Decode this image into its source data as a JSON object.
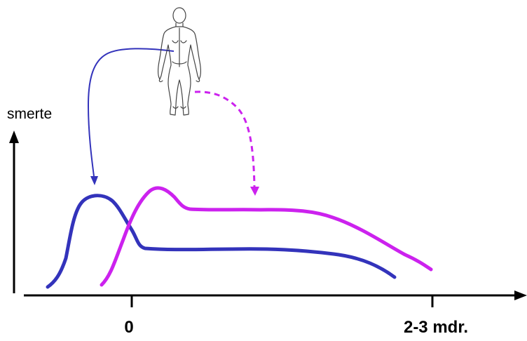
{
  "diagram": {
    "y_axis_label": "smerte",
    "x_ticks": [
      "0",
      "2-3 mdr."
    ],
    "figure_icon": "human-body-back-view-icon",
    "colors": {
      "axis": "#000000",
      "curve_blue": "#3333bb",
      "curve_magenta": "#cc22ee",
      "arrow_blue": "#3333bb",
      "arrow_magenta": "#cc22ee"
    }
  }
}
